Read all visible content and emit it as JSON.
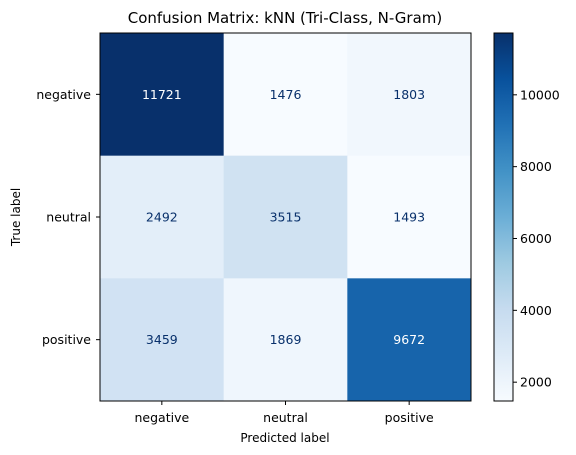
{
  "chart_data": {
    "type": "heatmap",
    "title": "Confusion Matrix: kNN (Tri-Class, N-Gram)",
    "xlabel": "Predicted label",
    "ylabel": "True label",
    "x_categories": [
      "negative",
      "neutral",
      "positive"
    ],
    "y_categories": [
      "negative",
      "neutral",
      "positive"
    ],
    "values": [
      [
        11721,
        1476,
        1803
      ],
      [
        2492,
        3515,
        1493
      ],
      [
        3459,
        1869,
        9672
      ]
    ],
    "colormap": "Blues",
    "color_range": [
      1476,
      11721
    ],
    "colorbar_ticks": [
      2000,
      4000,
      6000,
      8000,
      10000
    ],
    "grid": false
  }
}
